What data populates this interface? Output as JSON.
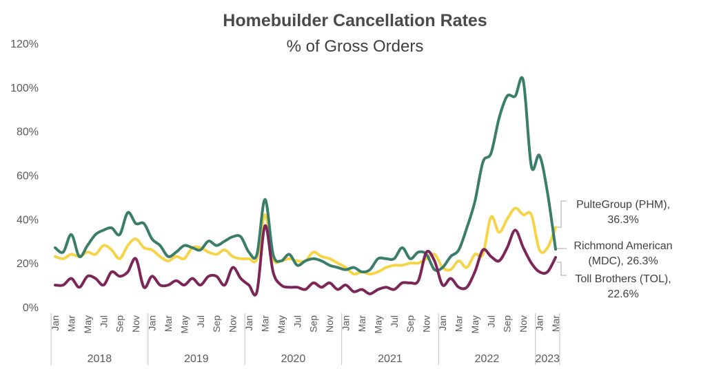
{
  "chart_data": {
    "type": "line",
    "title": "Homebuilder Cancellation Rates",
    "subtitle": "% of Gross Orders",
    "ylim": [
      0,
      120
    ],
    "yticks": [
      0,
      20,
      40,
      60,
      80,
      100,
      120
    ],
    "ytick_labels": [
      "0%",
      "20%",
      "40%",
      "60%",
      "80%",
      "100%",
      "120%"
    ],
    "grid": false,
    "x": [
      "2018-01",
      "2018-02",
      "2018-03",
      "2018-04",
      "2018-05",
      "2018-06",
      "2018-07",
      "2018-08",
      "2018-09",
      "2018-10",
      "2018-11",
      "2018-12",
      "2019-01",
      "2019-02",
      "2019-03",
      "2019-04",
      "2019-05",
      "2019-06",
      "2019-07",
      "2019-08",
      "2019-09",
      "2019-10",
      "2019-11",
      "2019-12",
      "2020-01",
      "2020-02",
      "2020-03",
      "2020-04",
      "2020-05",
      "2020-06",
      "2020-07",
      "2020-08",
      "2020-09",
      "2020-10",
      "2020-11",
      "2020-12",
      "2021-01",
      "2021-02",
      "2021-03",
      "2021-04",
      "2021-05",
      "2021-06",
      "2021-07",
      "2021-08",
      "2021-09",
      "2021-10",
      "2021-11",
      "2021-12",
      "2022-01",
      "2022-02",
      "2022-03",
      "2022-04",
      "2022-05",
      "2022-06",
      "2022-07",
      "2022-08",
      "2022-09",
      "2022-10",
      "2022-11",
      "2022-12",
      "2023-01",
      "2023-02",
      "2023-03"
    ],
    "x_tick_labels": [
      "Jan",
      "Mar",
      "May",
      "Jul",
      "Sep",
      "Nov",
      "Jan",
      "Mar",
      "May",
      "Jul",
      "Sep",
      "Nov",
      "Jan",
      "Mar",
      "May",
      "Jul",
      "Sep",
      "Nov",
      "Jan",
      "Mar",
      "May",
      "Jul",
      "Sep",
      "Nov",
      "Jan",
      "Mar",
      "May",
      "Jul",
      "Sep",
      "Nov",
      "Jan",
      "Mar"
    ],
    "years": [
      "2018",
      "2019",
      "2020",
      "2021",
      "2022",
      "2023"
    ],
    "series": [
      {
        "name": "PulteGroup (PHM), 36.3%",
        "color": "#f5d547",
        "values": [
          23,
          22,
          24,
          23,
          25,
          24,
          28,
          26,
          22,
          28,
          31,
          27,
          26,
          23,
          21,
          23,
          22,
          27,
          27,
          25,
          24,
          26,
          23,
          22,
          22,
          22,
          42,
          22,
          21,
          22,
          21,
          21,
          25,
          23,
          22,
          20,
          18,
          15,
          16,
          15,
          16,
          18,
          19,
          19,
          20,
          20,
          22,
          24,
          18,
          17,
          21,
          18,
          24,
          24,
          41,
          34,
          40,
          45,
          42,
          42,
          26,
          27,
          36.3
        ]
      },
      {
        "name": "Richmond American (MDC), 26.3%",
        "color": "#3a7d68",
        "values": [
          27,
          25,
          33,
          23,
          28,
          33,
          35,
          36,
          33,
          43,
          38,
          38,
          31,
          28,
          23,
          25,
          28,
          27,
          26,
          30,
          28,
          30,
          32,
          32,
          25,
          24,
          49,
          24,
          21,
          24,
          19,
          21,
          22,
          21,
          19,
          18,
          17,
          18,
          16,
          17,
          22,
          22,
          22,
          27,
          22,
          25,
          24,
          17,
          18,
          23,
          26,
          36,
          48,
          66,
          70,
          86,
          96,
          96,
          103,
          64,
          69,
          52,
          26.3
        ]
      },
      {
        "name": "Toll Brothers (TOL), 22.6%",
        "color": "#7b2559",
        "values": [
          10,
          10,
          13,
          9,
          14,
          13,
          10,
          16,
          14,
          16,
          22,
          9,
          14,
          10,
          10,
          12,
          10,
          13,
          10,
          14,
          14,
          10,
          18,
          13,
          10,
          7,
          37,
          16,
          10,
          9,
          9,
          8,
          11,
          9,
          11,
          8,
          10,
          7,
          8,
          6,
          8,
          9,
          8,
          11,
          11,
          12,
          25,
          21,
          10,
          13,
          9,
          9,
          16,
          26,
          23,
          21,
          27,
          35,
          27,
          20,
          16,
          16,
          22.6
        ]
      }
    ],
    "end_labels": [
      {
        "line1": "PulteGroup (PHM),",
        "line2": "36.3%"
      },
      {
        "line1": "Richmond American",
        "line2": "(MDC), 26.3%"
      },
      {
        "line1": "Toll Brothers (TOL),",
        "line2": "22.6%"
      }
    ]
  }
}
